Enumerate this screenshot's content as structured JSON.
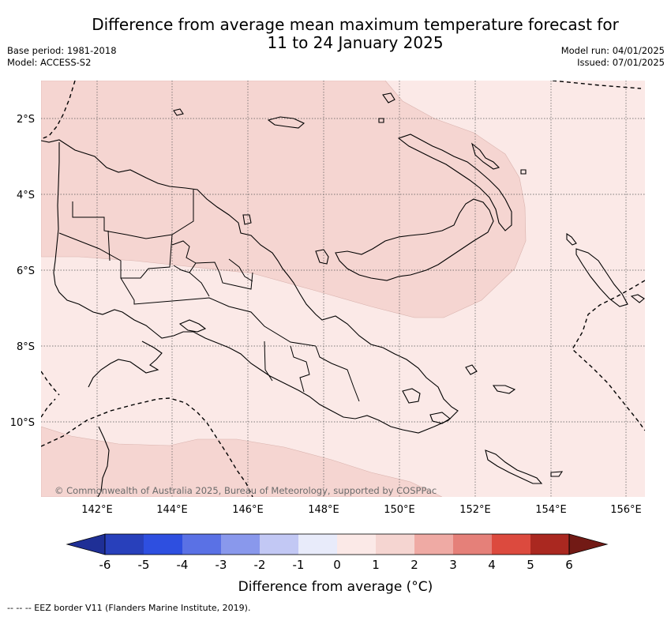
{
  "title": {
    "line1": "Difference from average mean maximum temperature forecast for",
    "line2": "11 to 24 January 2025"
  },
  "meta": {
    "base_period": "Base period: 1981-2018",
    "model": "Model: ACCESS-S2",
    "model_run": "Model run: 04/01/2025",
    "issued": "Issued: 07/01/2025"
  },
  "map": {
    "lat_labels": [
      "2°S",
      "4°S",
      "6°S",
      "8°S",
      "10°S"
    ],
    "lon_labels": [
      "142°E",
      "144°E",
      "146°E",
      "148°E",
      "150°E",
      "152°E",
      "154°E",
      "156°E"
    ],
    "copyright": "© Commonwealth of Australia 2025, Bureau of Meteorology, supported by COSPPac",
    "region_colors": {
      "slightly_warm": "#fbe9e7",
      "warm": "#f5d5d1"
    }
  },
  "colorbar": {
    "ticks": [
      "-6",
      "-5",
      "-4",
      "-3",
      "-2",
      "-1",
      "0",
      "1",
      "2",
      "3",
      "4",
      "5",
      "6"
    ],
    "colors": [
      "#1f2f96",
      "#2840bb",
      "#2e4fe0",
      "#5a71e5",
      "#8998ec",
      "#c2c8f4",
      "#e8ebfa",
      "#fbe9e7",
      "#f5d5d1",
      "#efaaa4",
      "#e58079",
      "#dc4a3e",
      "#aa2820",
      "#721a15"
    ],
    "title": "Difference from average (°C)"
  },
  "footer": "--  --  -- EEZ border V11 (Flanders Marine Institute, 2019)."
}
